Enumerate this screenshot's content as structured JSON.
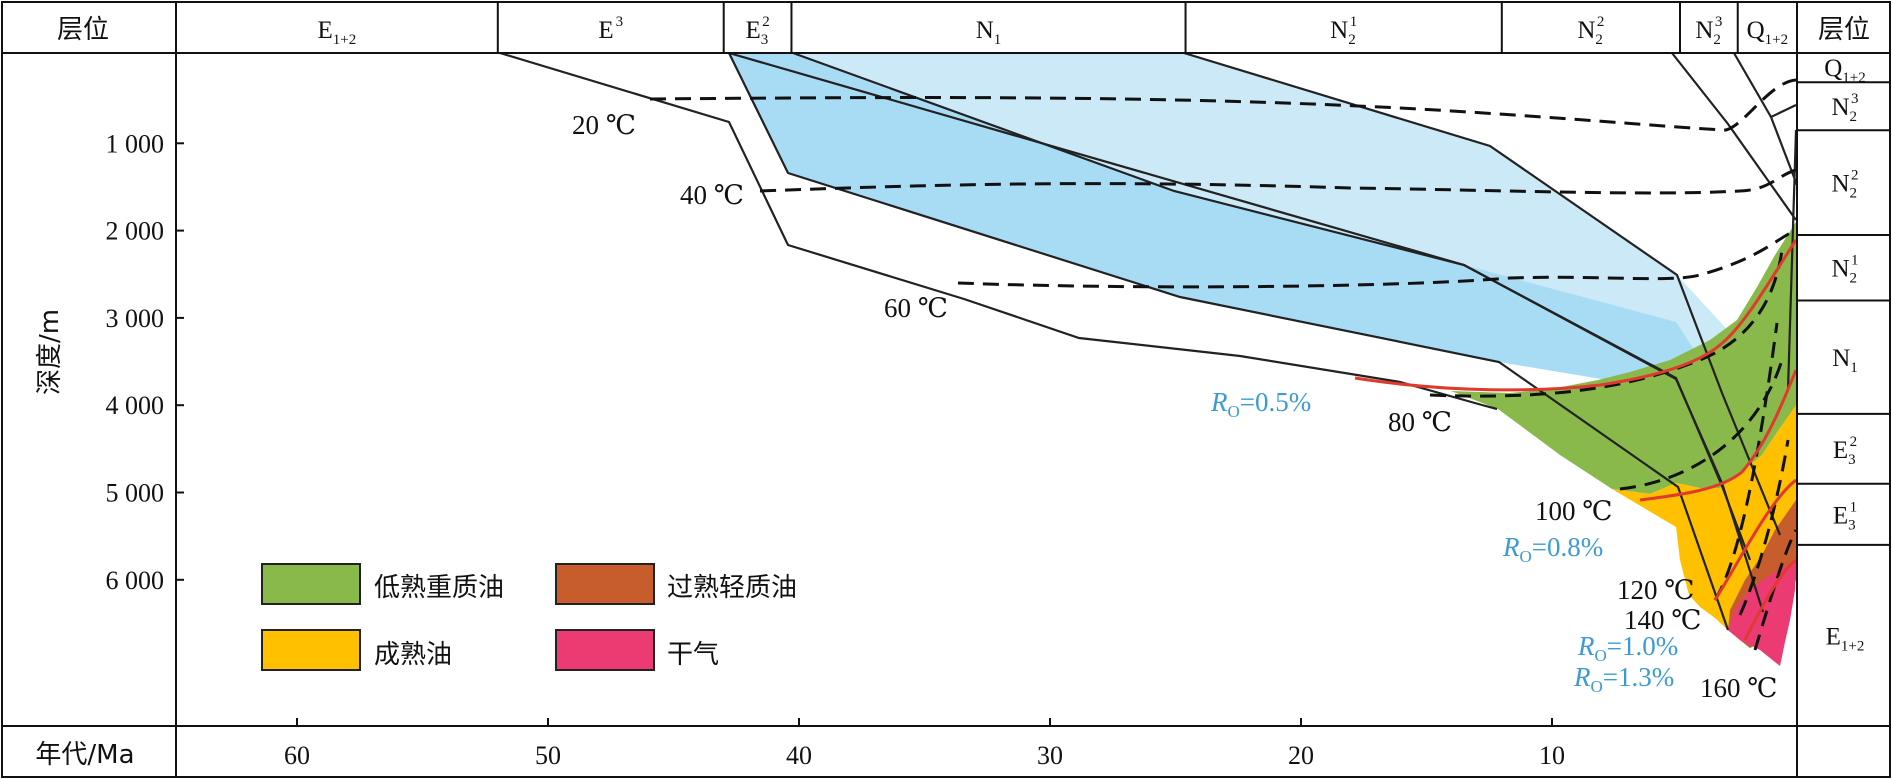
{
  "chart_data": {
    "type": "burial-history",
    "header_left": "层位",
    "header_right": "层位",
    "ylabel": "深度/m",
    "xlabel": "年代/Ma",
    "x_ticks": [
      "60",
      "50",
      "40",
      "30",
      "20",
      "10"
    ],
    "y_ticks": [
      "1 000",
      "2 000",
      "3 000",
      "4 000",
      "5 000",
      "6 000"
    ],
    "strata_top": [
      {
        "base": "E",
        "sub": "1+2",
        "sup": "",
        "from_ma": 65.0,
        "to_ma": 52.0
      },
      {
        "base": "E",
        "sub": "",
        "sup": "3",
        "from_ma": 52.0,
        "to_ma": 43.0
      },
      {
        "base": "E",
        "sub": "3",
        "sup": "2",
        "from_ma": 43.0,
        "to_ma": 40.3
      },
      {
        "base": "N",
        "sub": "1",
        "sup": "",
        "from_ma": 40.3,
        "to_ma": 24.6
      },
      {
        "base": "N",
        "sub": "2",
        "sup": "1",
        "from_ma": 24.6,
        "to_ma": 12.0
      },
      {
        "base": "N",
        "sub": "2",
        "sup": "2",
        "from_ma": 12.0,
        "to_ma": 4.9
      },
      {
        "base": "N",
        "sub": "2",
        "sup": "3",
        "from_ma": 4.9,
        "to_ma": 2.6
      },
      {
        "base": "Q",
        "sub": "1+2",
        "sup": "",
        "from_ma": 2.6,
        "to_ma": 0.0
      }
    ],
    "strata_right": [
      {
        "base": "Q",
        "sub": "1+2",
        "sup": "",
        "top_m": 0,
        "bottom_m": 300
      },
      {
        "base": "N",
        "sub": "2",
        "sup": "3",
        "top_m": 300,
        "bottom_m": 850
      },
      {
        "base": "N",
        "sub": "2",
        "sup": "2",
        "top_m": 850,
        "bottom_m": 2050
      },
      {
        "base": "N",
        "sub": "2",
        "sup": "1",
        "top_m": 2050,
        "bottom_m": 2800
      },
      {
        "base": "N",
        "sub": "1",
        "sup": "",
        "top_m": 2800,
        "bottom_m": 4100
      },
      {
        "base": "E",
        "sub": "3",
        "sup": "2",
        "top_m": 4100,
        "bottom_m": 4900
      },
      {
        "base": "E",
        "sub": "3",
        "sup": "1",
        "top_m": 4900,
        "bottom_m": 5600
      },
      {
        "base": "E",
        "sub": "1+2",
        "sup": "",
        "top_m": 5600,
        "bottom_m": 7700
      }
    ],
    "temperature_labels": [
      "20 ℃",
      "40 ℃",
      "60 ℃",
      "80 ℃",
      "100 ℃",
      "120 ℃",
      "140 ℃",
      "160 ℃"
    ],
    "ro_labels": [
      {
        "r": "R",
        "sub": "O",
        "value": "=0.5%"
      },
      {
        "r": "R",
        "sub": "O",
        "value": "=0.8%"
      },
      {
        "r": "R",
        "sub": "O",
        "value": "=1.0%"
      },
      {
        "r": "R",
        "sub": "O",
        "value": "=1.3%"
      }
    ],
    "legend": [
      {
        "label": "低熟重质油",
        "color": "#8ab94b"
      },
      {
        "label": "过熟轻质油",
        "color": "#c75d2c"
      },
      {
        "label": "成熟油",
        "color": "#ffc000"
      },
      {
        "label": "干气",
        "color": "#ec3b72"
      }
    ],
    "colors": {
      "water_light": "#cbe9f7",
      "water_dark": "#a8dcf5",
      "ro_line": "#e03a2f",
      "ro_text": "#3c9bd5"
    },
    "xlim": [
      65,
      0
    ],
    "ylim": [
      0,
      7700
    ]
  }
}
